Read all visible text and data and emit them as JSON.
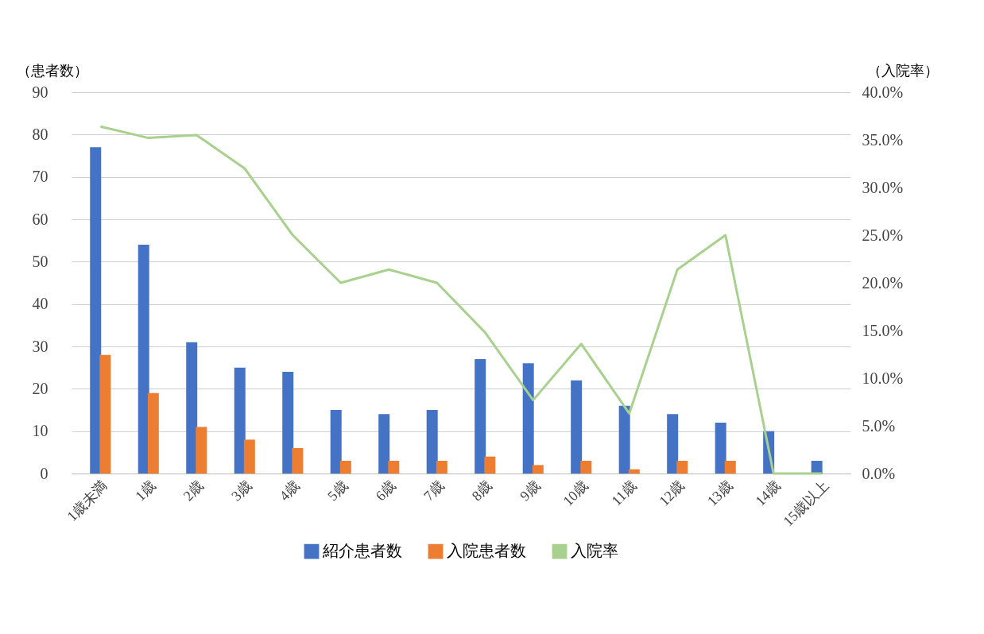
{
  "chart_data": {
    "type": "bar",
    "categories": [
      "1歳未満",
      "1歳",
      "2歳",
      "3歳",
      "4歳",
      "5歳",
      "6歳",
      "7歳",
      "8歳",
      "9歳",
      "10歳",
      "11歳",
      "12歳",
      "13歳",
      "14歳",
      "15歳以上"
    ],
    "ylabel": "（患者数）",
    "y2label": "（入院率）",
    "series": [
      {
        "name": "紹介患者数",
        "color": "#4472c4",
        "values": [
          77,
          54,
          31,
          25,
          24,
          15,
          14,
          15,
          27,
          26,
          22,
          16,
          14,
          12,
          10,
          3
        ]
      },
      {
        "name": "入院患者数",
        "color": "#ed7d31",
        "values": [
          28,
          19,
          11,
          8,
          6,
          3,
          3,
          3,
          4,
          2,
          3,
          1,
          3,
          3,
          0,
          0
        ]
      },
      {
        "name": "入院率",
        "type": "line",
        "axis": "y2",
        "color": "#a9d18e",
        "values": [
          36.4,
          35.2,
          35.5,
          32.0,
          25.0,
          20.0,
          21.4,
          20.0,
          14.8,
          7.7,
          13.6,
          6.3,
          21.4,
          25.0,
          0,
          0
        ]
      }
    ],
    "ylim": [
      0,
      90
    ],
    "yticks": [
      0,
      10,
      20,
      30,
      40,
      50,
      60,
      70,
      80,
      90
    ],
    "y2lim": [
      0,
      40
    ],
    "y2ticks": [
      {
        "value": 0,
        "label": "0.0%"
      },
      {
        "value": 5,
        "label": "5.0%"
      },
      {
        "value": 10,
        "label": "10.0%"
      },
      {
        "value": 15,
        "label": "15.0%"
      },
      {
        "value": 20,
        "label": "20.0%"
      },
      {
        "value": 25,
        "label": "25.0%"
      },
      {
        "value": 30,
        "label": "30.0%"
      },
      {
        "value": 35,
        "label": "35.0%"
      },
      {
        "value": 40,
        "label": "40.0%"
      }
    ],
    "grid": "y",
    "legend": "bottom",
    "marker": "none",
    "line_style": "solid"
  }
}
